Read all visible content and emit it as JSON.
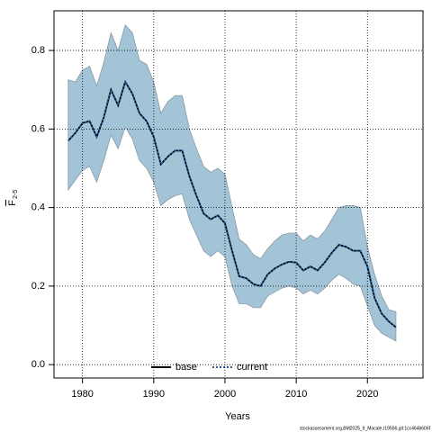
{
  "chart_data": {
    "type": "line",
    "ylabel": {
      "text": "F",
      "subscript": "2-5"
    },
    "xlabel": "Years",
    "footer": "stockassessment.org,BM2025_9_Macale,r19556,git:1cc464b606f",
    "x": [
      1978,
      1979,
      1980,
      1981,
      1982,
      1983,
      1984,
      1985,
      1986,
      1987,
      1988,
      1989,
      1990,
      1991,
      1992,
      1993,
      1994,
      1995,
      1996,
      1997,
      1998,
      1999,
      2000,
      2001,
      2002,
      2003,
      2004,
      2005,
      2006,
      2007,
      2008,
      2009,
      2010,
      2011,
      2012,
      2013,
      2014,
      2015,
      2016,
      2017,
      2018,
      2019,
      2020,
      2021,
      2022,
      2023,
      2024
    ],
    "series": [
      {
        "name": "base",
        "color": "#000000",
        "values": [
          0.57,
          0.59,
          0.615,
          0.62,
          0.58,
          0.63,
          0.7,
          0.66,
          0.72,
          0.69,
          0.64,
          0.62,
          0.58,
          0.51,
          0.53,
          0.545,
          0.545,
          0.48,
          0.43,
          0.385,
          0.37,
          0.38,
          0.36,
          0.29,
          0.225,
          0.22,
          0.205,
          0.2,
          0.23,
          0.245,
          0.255,
          0.262,
          0.26,
          0.24,
          0.25,
          0.24,
          0.26,
          0.285,
          0.305,
          0.3,
          0.29,
          0.29,
          0.25,
          0.17,
          0.13,
          0.11,
          0.095
        ]
      },
      {
        "name": "current",
        "color": "#1f5f9f",
        "values": [
          0.57,
          0.59,
          0.615,
          0.62,
          0.58,
          0.63,
          0.7,
          0.66,
          0.72,
          0.69,
          0.64,
          0.62,
          0.58,
          0.51,
          0.53,
          0.545,
          0.545,
          0.48,
          0.43,
          0.385,
          0.37,
          0.38,
          0.36,
          0.29,
          0.225,
          0.22,
          0.205,
          0.2,
          0.23,
          0.245,
          0.255,
          0.262,
          0.26,
          0.24,
          0.25,
          0.24,
          0.26,
          0.285,
          0.305,
          0.3,
          0.29,
          0.29,
          0.25,
          0.17,
          0.13,
          0.11,
          0.095
        ],
        "upper": [
          0.725,
          0.72,
          0.75,
          0.76,
          0.71,
          0.77,
          0.845,
          0.8,
          0.865,
          0.845,
          0.775,
          0.765,
          0.72,
          0.64,
          0.67,
          0.685,
          0.685,
          0.6,
          0.55,
          0.505,
          0.49,
          0.5,
          0.485,
          0.4,
          0.32,
          0.305,
          0.28,
          0.27,
          0.295,
          0.315,
          0.33,
          0.335,
          0.335,
          0.315,
          0.33,
          0.32,
          0.34,
          0.37,
          0.4,
          0.405,
          0.405,
          0.4,
          0.3,
          0.23,
          0.175,
          0.14,
          0.135
        ],
        "lower": [
          0.445,
          0.47,
          0.495,
          0.505,
          0.465,
          0.52,
          0.585,
          0.55,
          0.605,
          0.575,
          0.52,
          0.5,
          0.465,
          0.405,
          0.42,
          0.43,
          0.435,
          0.37,
          0.33,
          0.29,
          0.275,
          0.29,
          0.275,
          0.2,
          0.155,
          0.155,
          0.145,
          0.145,
          0.175,
          0.185,
          0.195,
          0.2,
          0.195,
          0.18,
          0.19,
          0.18,
          0.195,
          0.215,
          0.23,
          0.22,
          0.205,
          0.2,
          0.15,
          0.1,
          0.08,
          0.07,
          0.06
        ],
        "band_color": "#a3c4d6"
      }
    ],
    "xlim": [
      1976,
      2027.8
    ],
    "ylim": [
      -0.034,
      0.901
    ],
    "xticks": [
      1980,
      1990,
      2000,
      2010,
      2020
    ],
    "yticks": [
      {
        "value": 0,
        "label": "0.0"
      },
      {
        "value": 0.2,
        "label": "0.2"
      },
      {
        "value": 0.4,
        "label": "0.4"
      },
      {
        "value": 0.6,
        "label": "0.6"
      },
      {
        "value": 0.8,
        "label": "0.8"
      }
    ],
    "grid": true,
    "legend": "bottom"
  }
}
